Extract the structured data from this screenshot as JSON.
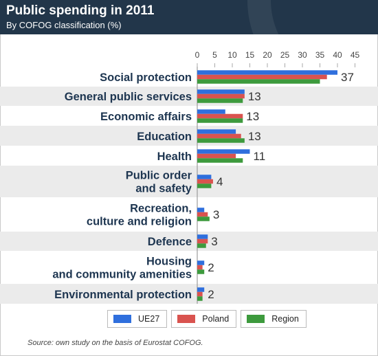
{
  "header": {
    "title": "Public spending in 2011",
    "subtitle": "By COFOG classification (%)"
  },
  "source": "Source: own study on the basis of Eurostat COFOG.",
  "chart_data": {
    "type": "bar",
    "orientation": "horizontal",
    "title": "Public spending in 2011",
    "subtitle": "By COFOG classification (%)",
    "xlabel": "",
    "ylabel": "",
    "xlim": [
      0,
      45
    ],
    "xticks": [
      0,
      5,
      10,
      15,
      20,
      25,
      30,
      35,
      40,
      45
    ],
    "categories": [
      [
        "Social protection"
      ],
      [
        "General public services"
      ],
      [
        "Economic affairs"
      ],
      [
        "Education"
      ],
      [
        "Health"
      ],
      [
        "Public order",
        "and safety"
      ],
      [
        "Recreation,",
        "culture and religion"
      ],
      [
        "Defence"
      ],
      [
        "Housing",
        "and community amenities"
      ],
      [
        "Environmental protection"
      ]
    ],
    "value_labels": [
      "37",
      "13",
      "13",
      "13",
      "11",
      "4",
      "3",
      "3",
      "2",
      "2"
    ],
    "series": [
      {
        "name": "UE27",
        "color": "#2f6fdd",
        "values": [
          40,
          13.5,
          8,
          11,
          15,
          4,
          2,
          3,
          2,
          2
        ]
      },
      {
        "name": "Poland",
        "color": "#d9534f",
        "values": [
          37,
          13.5,
          13,
          12.5,
          11,
          4.5,
          3,
          3,
          1.5,
          1.5
        ]
      },
      {
        "name": "Region",
        "color": "#3d9a3d",
        "values": [
          35,
          13,
          13,
          13.5,
          13,
          4,
          3.5,
          2.5,
          2,
          1.5
        ]
      }
    ],
    "grid": false,
    "legend": "bottom"
  }
}
